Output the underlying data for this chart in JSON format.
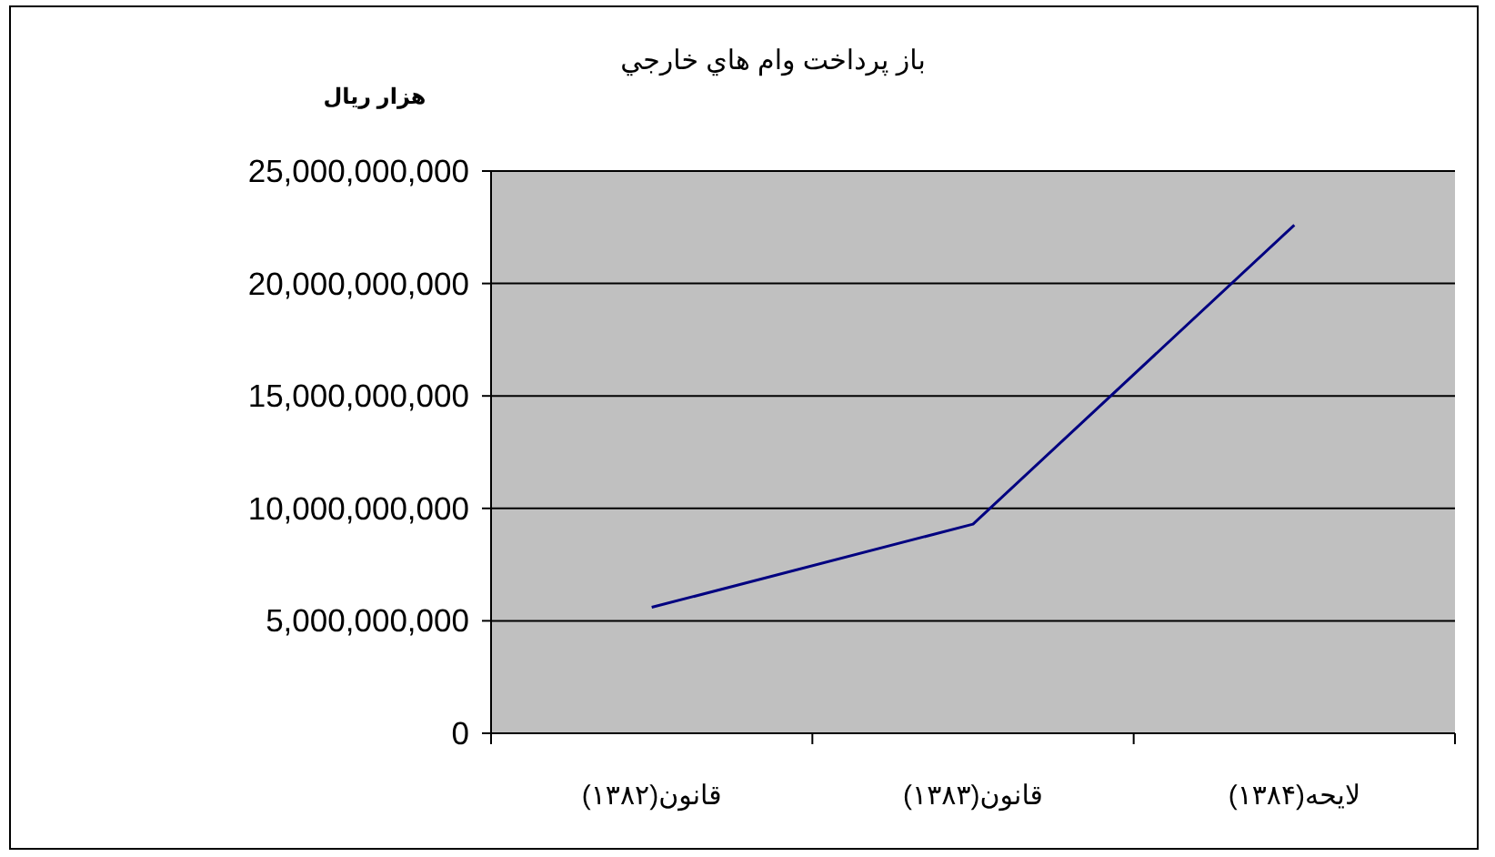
{
  "chart_data": {
    "type": "line",
    "title": "باز پرداخت وام هاي خارجي",
    "ylabel": "هزار ريال",
    "categories": [
      "قانون(۱۳۸۲)",
      "قانون(۱۳۸۳)",
      "لايحه(۱۳۸۴)"
    ],
    "values": [
      5600000000,
      9300000000,
      22600000000
    ],
    "color": "#000080",
    "ylim": [
      0,
      25000000000
    ],
    "yticks": [
      0,
      {
        "value": 5000000000,
        "label": "5,000,000,000"
      },
      {
        "value": 10000000000,
        "label": "10,000,000,000"
      },
      {
        "value": 15000000000,
        "label": "15,000,000,000"
      },
      {
        "value": 20000000000,
        "label": "20,000,000,000"
      },
      {
        "value": 25000000000,
        "label": "25,000,000,000"
      }
    ],
    "grid": "y",
    "legend": false,
    "marker": "none",
    "line_style": "solid"
  }
}
